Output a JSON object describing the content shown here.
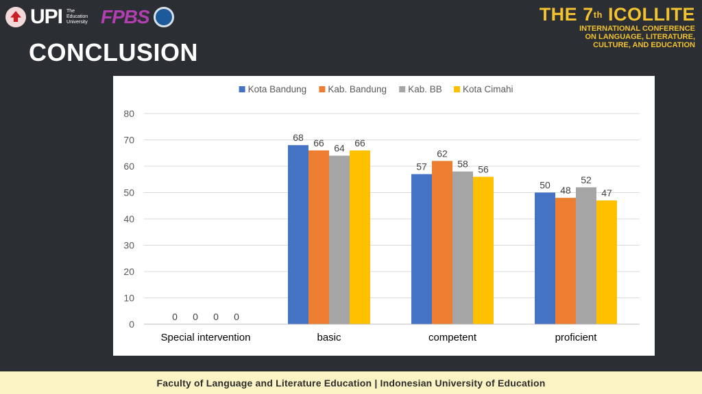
{
  "header": {
    "logo_upi": "UPI",
    "logo_upi_sub": "The Education University",
    "logo_fpbs": "FPBS"
  },
  "page_title": "CONCLUSION",
  "conference": {
    "main_prefix": "THE 7",
    "main_sup": "th",
    "main_suffix": " ICOLLITE",
    "line1": "INTERNATIONAL CONFERENCE",
    "line2": "ON LANGUAGE, LITERATURE,",
    "line3": "CULTURE, AND EDUCATION"
  },
  "footer": "Faculty of Language and Literature Education | Indonesian University of Education",
  "colors": {
    "background": "#2b2f33",
    "accent": "#f2c230",
    "footer_bg": "#fbf3c4"
  },
  "chart_data": {
    "type": "bar",
    "categories": [
      "Special intervention",
      "basic",
      "competent",
      "proficient"
    ],
    "series": [
      {
        "name": "Kota Bandung",
        "color": "#4472c4",
        "values": [
          0,
          68,
          57,
          50
        ]
      },
      {
        "name": "Kab. Bandung",
        "color": "#ed7d31",
        "values": [
          0,
          66,
          62,
          48
        ]
      },
      {
        "name": "Kab. BB",
        "color": "#a5a5a5",
        "values": [
          0,
          64,
          58,
          52
        ]
      },
      {
        "name": "Kota Cimahi",
        "color": "#ffc000",
        "values": [
          0,
          66,
          56,
          47
        ]
      }
    ],
    "ylim": [
      0,
      80
    ],
    "yticks": [
      0,
      10,
      20,
      30,
      40,
      50,
      60,
      70,
      80
    ],
    "grid": true,
    "legend": "top",
    "data_labels": true,
    "title": "",
    "xlabel": "",
    "ylabel": ""
  }
}
